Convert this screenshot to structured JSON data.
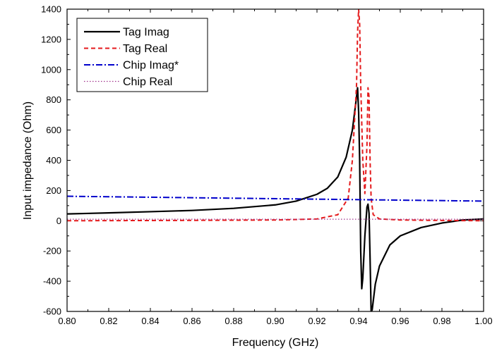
{
  "chart_data": {
    "type": "line",
    "xlabel": "Frequency (GHz)",
    "ylabel": "Input impedance (Ohm)",
    "xlim": [
      0.8,
      1.0
    ],
    "ylim": [
      -600,
      1400
    ],
    "xticks": [
      "0.80",
      "0.82",
      "0.84",
      "0.86",
      "0.88",
      "0.90",
      "0.92",
      "0.94",
      "0.96",
      "0.98",
      "1.00"
    ],
    "yticks": [
      "-600",
      "-400",
      "-200",
      "0",
      "200",
      "400",
      "600",
      "800",
      "1000",
      "1200",
      "1400"
    ],
    "grid": false,
    "legend_position": "top-left",
    "series": [
      {
        "name": "Tag  Imag",
        "color": "#000000",
        "style": "solid",
        "x": [
          0.8,
          0.82,
          0.84,
          0.86,
          0.88,
          0.9,
          0.91,
          0.92,
          0.925,
          0.93,
          0.934,
          0.937,
          0.939,
          0.9395,
          0.94,
          0.9405,
          0.941,
          0.9415,
          0.942,
          0.943,
          0.944,
          0.9445,
          0.945,
          0.9455,
          0.946,
          0.9465,
          0.948,
          0.95,
          0.955,
          0.96,
          0.97,
          0.98,
          0.99,
          1.0
        ],
        "y": [
          45,
          52,
          60,
          68,
          82,
          105,
          130,
          175,
          215,
          290,
          420,
          600,
          820,
          880,
          720,
          400,
          -200,
          -450,
          -380,
          -100,
          90,
          110,
          50,
          -250,
          -600,
          -590,
          -420,
          -300,
          -160,
          -100,
          -45,
          -15,
          5,
          12
        ]
      },
      {
        "name": "Tag  Real",
        "color": "#e41a1c",
        "style": "dashed",
        "x": [
          0.8,
          0.85,
          0.9,
          0.92,
          0.93,
          0.935,
          0.937,
          0.939,
          0.9395,
          0.94,
          0.9405,
          0.941,
          0.942,
          0.943,
          0.944,
          0.9445,
          0.945,
          0.9455,
          0.946,
          0.947,
          0.95,
          0.96,
          0.98,
          1.0
        ],
        "y": [
          0,
          2,
          5,
          12,
          40,
          150,
          400,
          900,
          1250,
          1400,
          1300,
          900,
          400,
          180,
          500,
          880,
          820,
          400,
          150,
          40,
          12,
          5,
          2,
          0
        ]
      },
      {
        "name": "Chip Imag*",
        "color": "#0000cc",
        "style": "dashdot",
        "x": [
          0.8,
          1.0
        ],
        "y": [
          162,
          130
        ]
      },
      {
        "name": "Chip Real",
        "color": "#a0328c",
        "style": "dotted",
        "x": [
          0.8,
          1.0
        ],
        "y": [
          10,
          10
        ]
      }
    ]
  }
}
